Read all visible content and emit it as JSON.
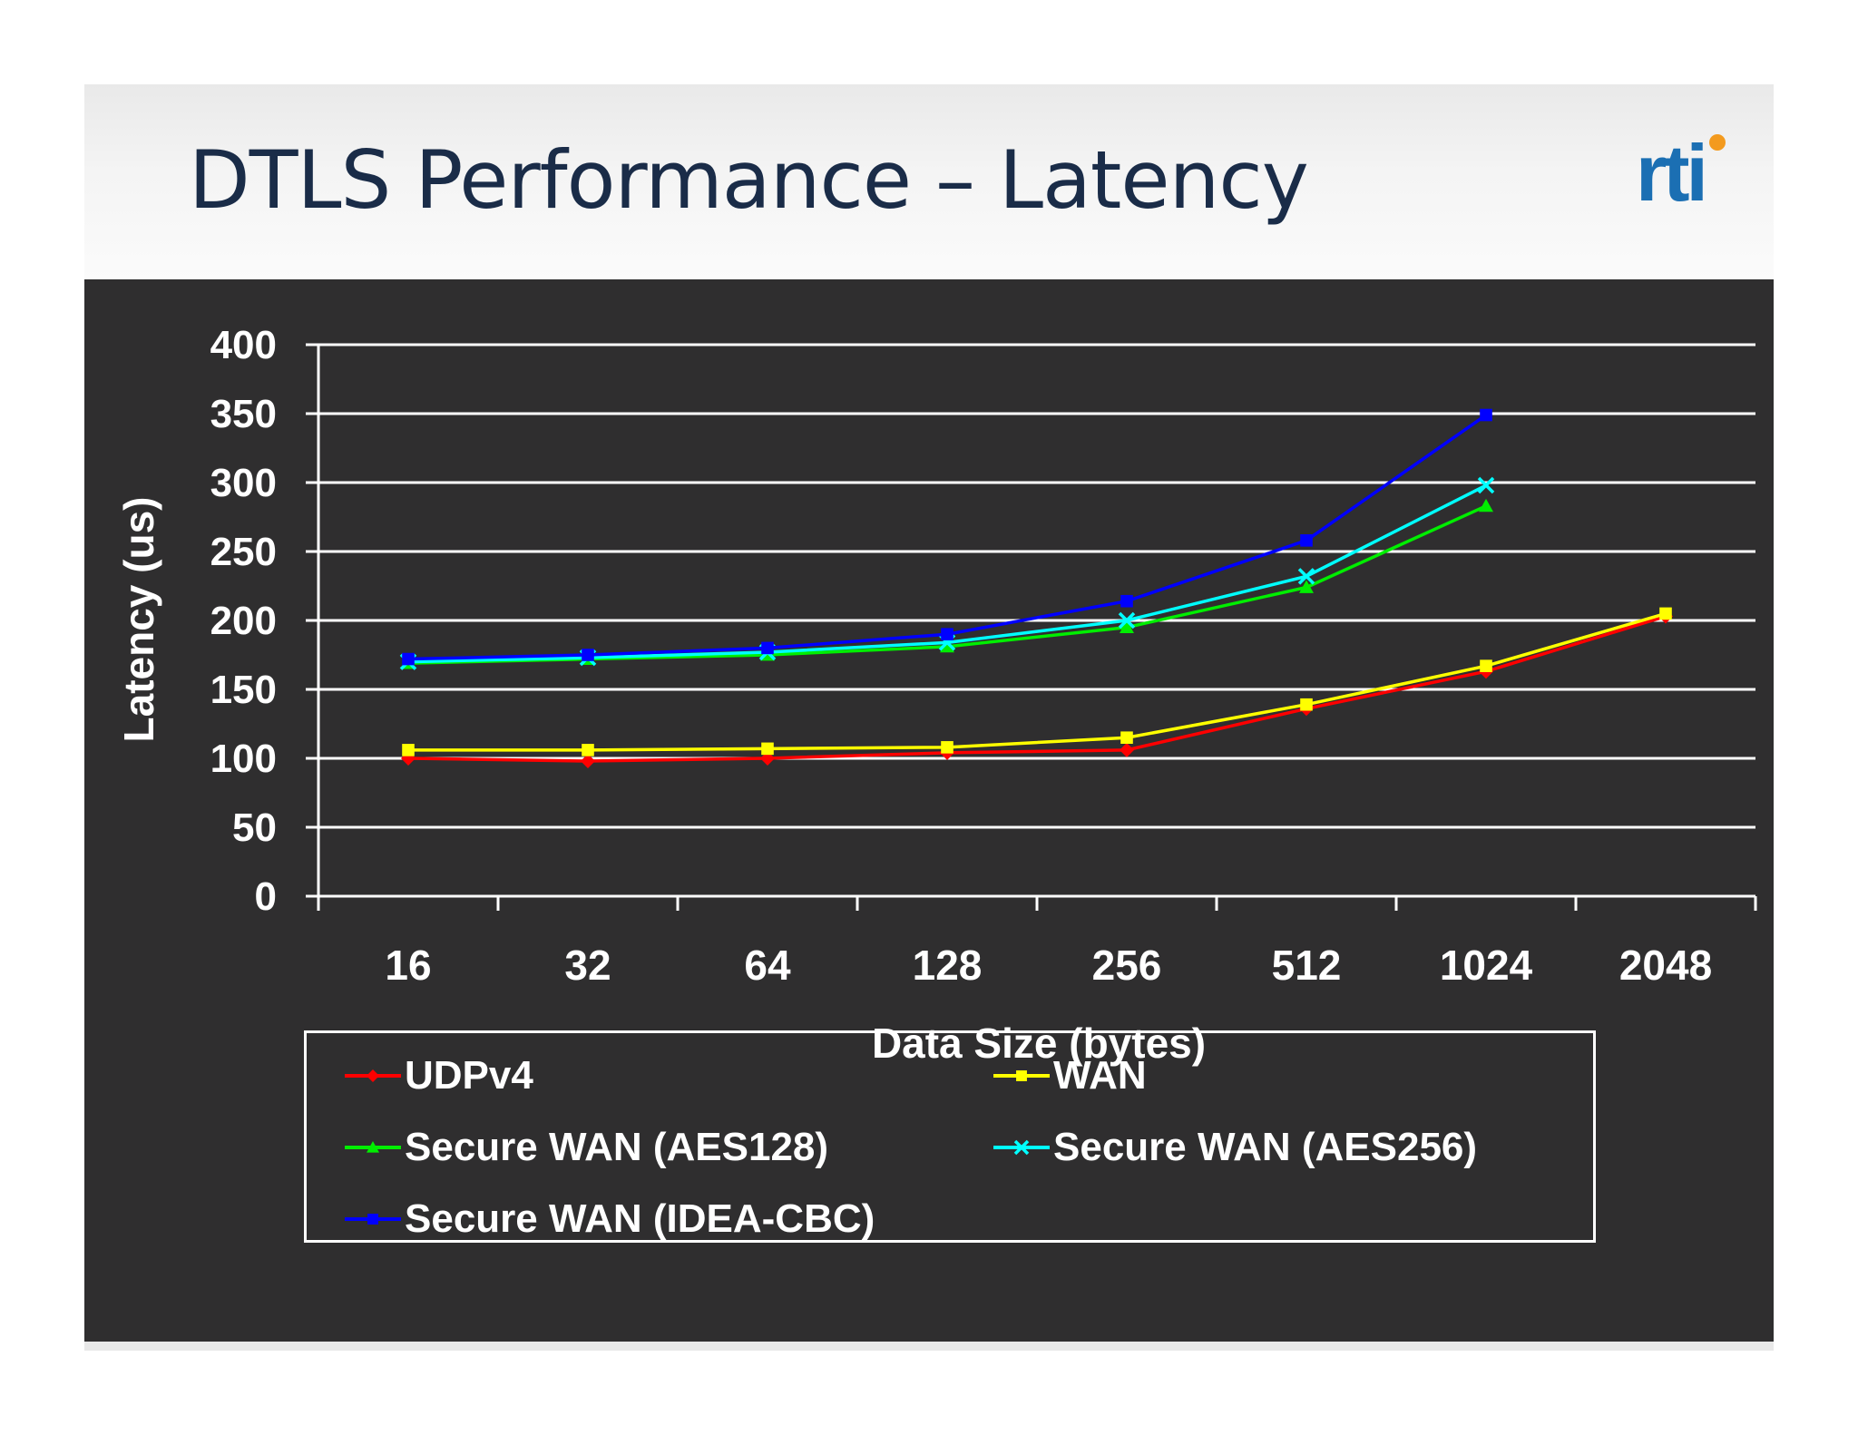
{
  "slide": {
    "title": "DTLS Performance – Latency",
    "logo_text": "rti",
    "logo_color": "#1b6fb3",
    "logo_dot_color": "#f39a1e",
    "background": "#2f2e2f"
  },
  "chart_data": {
    "type": "line",
    "title": "",
    "xlabel": "Data Size (bytes)",
    "ylabel": "Latency (us)",
    "categories": [
      "16",
      "32",
      "64",
      "128",
      "256",
      "512",
      "1024",
      "2048"
    ],
    "ylim": [
      0,
      400
    ],
    "yticks": [
      0,
      50,
      100,
      150,
      200,
      250,
      300,
      350,
      400
    ],
    "grid": true,
    "legend_position": "bottom",
    "series": [
      {
        "name": "UDPv4",
        "color": "#ff0000",
        "marker": "diamond",
        "values": [
          100,
          98,
          100,
          104,
          106,
          136,
          163,
          203
        ]
      },
      {
        "name": "WAN",
        "color": "#ffff00",
        "marker": "square",
        "values": [
          106,
          106,
          107,
          108,
          115,
          139,
          167,
          205
        ]
      },
      {
        "name": "Secure WAN (AES128)",
        "color": "#00ee00",
        "marker": "triangle",
        "values": [
          169,
          172,
          175,
          181,
          195,
          224,
          283,
          null
        ]
      },
      {
        "name": "Secure WAN (AES256)",
        "color": "#00ffff",
        "marker": "x",
        "values": [
          170,
          173,
          177,
          184,
          200,
          232,
          298,
          null
        ]
      },
      {
        "name": "Secure WAN (IDEA-CBC)",
        "color": "#0000ff",
        "marker": "square",
        "values": [
          172,
          175,
          180,
          190,
          214,
          258,
          349,
          null
        ]
      }
    ]
  }
}
